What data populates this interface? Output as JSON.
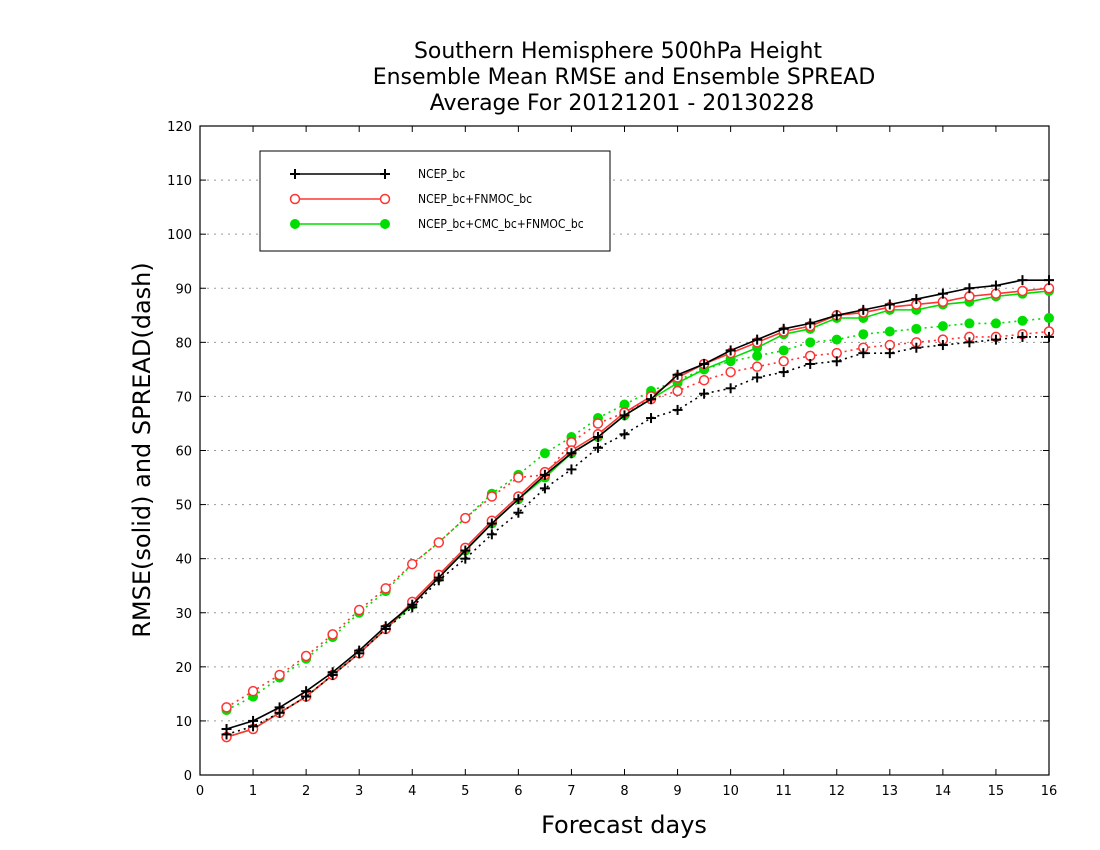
{
  "chart_data": {
    "type": "line",
    "title": [
      "Southern Hemisphere 500hPa Height",
      "Ensemble Mean RMSE and Ensemble SPREAD",
      "Average For 20121201 - 20130228"
    ],
    "xlabel": "Forecast days",
    "ylabel": "RMSE(solid) and SPREAD(dash)",
    "xlim": [
      0,
      16
    ],
    "ylim": [
      0,
      120
    ],
    "xticks": [
      0,
      1,
      2,
      3,
      4,
      5,
      6,
      7,
      8,
      9,
      10,
      11,
      12,
      13,
      14,
      15,
      16
    ],
    "yticks": [
      0,
      10,
      20,
      30,
      40,
      50,
      60,
      70,
      80,
      90,
      100,
      110,
      120
    ],
    "grid": "horizontal dotted",
    "legend_position": "top-left",
    "x": [
      0.5,
      1,
      1.5,
      2,
      2.5,
      3,
      3.5,
      4,
      4.5,
      5,
      5.5,
      6,
      6.5,
      7,
      7.5,
      8,
      8.5,
      9,
      9.5,
      10,
      10.5,
      11,
      11.5,
      12,
      12.5,
      13,
      13.5,
      14,
      14.5,
      15,
      15.5,
      16
    ],
    "series": [
      {
        "name": "NCEP_bc",
        "color": "#000000",
        "marker": "plus",
        "rmse": [
          8.5,
          10,
          12.5,
          15.5,
          19,
          23,
          27.5,
          31.5,
          36.5,
          41.5,
          46.5,
          51,
          55.5,
          59.5,
          62.5,
          66.5,
          69.5,
          74,
          76,
          78.5,
          80.5,
          82.5,
          83.5,
          85,
          86,
          87,
          88,
          89,
          90,
          90.5,
          91.5,
          91.5
        ],
        "spread": [
          7.5,
          9,
          11.5,
          14.5,
          18.5,
          22.5,
          27,
          31,
          36,
          40,
          44.5,
          48.5,
          53,
          56.5,
          60.5,
          63,
          66,
          67.5,
          70.5,
          71.5,
          73.5,
          74.5,
          76,
          76.5,
          78,
          78,
          79,
          79.5,
          80,
          80.5,
          81,
          81
        ]
      },
      {
        "name": "NCEP_bc+FNMOC_bc",
        "color": "#ff3333",
        "marker": "open-circle",
        "rmse": [
          7,
          8.5,
          11.5,
          14.5,
          18.5,
          22.5,
          27,
          32,
          37,
          42,
          47,
          51.5,
          56,
          60,
          63,
          67,
          70,
          73.5,
          76,
          78,
          80,
          82,
          83,
          85,
          85.5,
          86.5,
          87,
          87.5,
          88.5,
          89,
          89.5,
          90
        ],
        "spread": [
          12.5,
          15.5,
          18.5,
          22,
          26,
          30.5,
          34.5,
          39,
          43,
          47.5,
          51.5,
          55,
          55.5,
          61.5,
          65,
          67,
          69.5,
          71,
          73,
          74.5,
          75.5,
          76.5,
          77.5,
          78,
          79,
          79.5,
          80,
          80.5,
          81,
          81,
          81.5,
          82
        ]
      },
      {
        "name": "NCEP_bc+CMC_bc+FNMOC_bc",
        "color": "#00dd00",
        "marker": "filled-circle",
        "rmse": [
          7,
          8.5,
          11.5,
          14.5,
          18.5,
          22.5,
          27,
          31.5,
          36.5,
          41.5,
          46.5,
          51,
          55,
          59.5,
          62.5,
          66.5,
          69.5,
          72.5,
          75,
          77,
          79,
          81.5,
          82.5,
          84.5,
          84.5,
          86,
          86,
          87,
          87.5,
          88.5,
          89,
          89.5
        ],
        "spread": [
          12,
          14.5,
          18,
          21.5,
          25.5,
          30,
          34,
          39,
          43,
          47.5,
          52,
          55.5,
          59.5,
          62.5,
          66,
          68.5,
          71,
          73,
          75,
          76.5,
          77.5,
          78.5,
          80,
          80.5,
          81.5,
          82,
          82.5,
          83,
          83.5,
          83.5,
          84,
          84.5
        ]
      }
    ]
  }
}
